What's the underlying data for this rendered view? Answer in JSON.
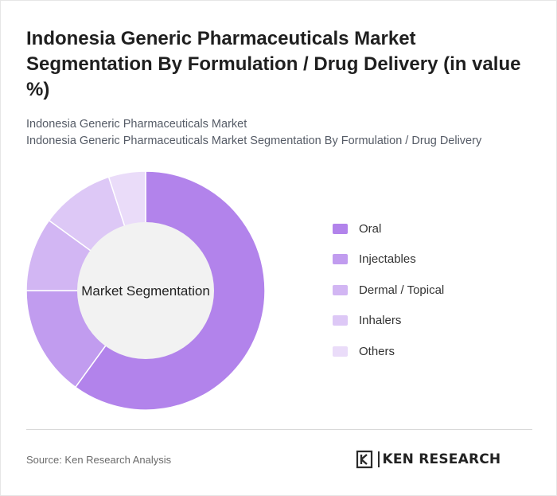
{
  "header": {
    "title": "Indonesia Generic Pharmaceuticals Market Segmentation By Formulation / Drug Delivery (in value %)",
    "subtitle_line1": "Indonesia Generic Pharmaceuticals Market",
    "subtitle_line2": "Indonesia Generic Pharmaceuticals Market Segmentation By Formulation / Drug Delivery"
  },
  "chart_data": {
    "type": "pie",
    "style": "donut",
    "center_label": "Market Segmentation",
    "categories": [
      "Oral",
      "Injectables",
      "Dermal / Topical",
      "Inhalers",
      "Others"
    ],
    "values": [
      60,
      15,
      10,
      10,
      5
    ],
    "colors": [
      "#b283eb",
      "#c19cef",
      "#d2b6f3",
      "#ddc8f6",
      "#eadcf9"
    ],
    "start": "12 o'clock",
    "direction": "clockwise",
    "legend_position": "right"
  },
  "footer": {
    "source": "Source: Ken Research Analysis",
    "logo_text": "KEN RESEARCH",
    "logo_icon": "ken-research-k-icon"
  }
}
